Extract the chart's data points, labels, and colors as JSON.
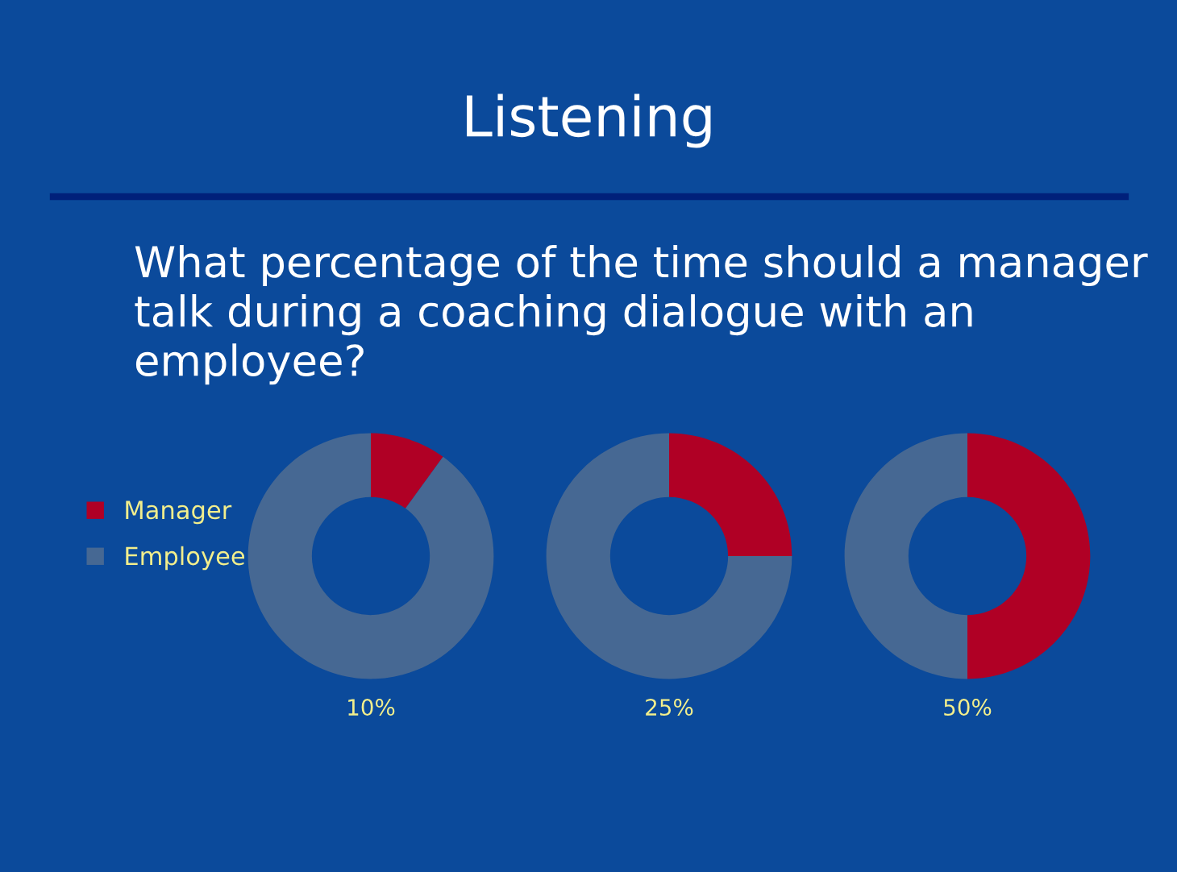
{
  "chart_data": {
    "type": "donut",
    "title": "Listening",
    "subtitle": "What percentage of the time should a manager talk during a coaching dialogue with an employee?",
    "categories": [
      "Manager",
      "Employee"
    ],
    "colors": [
      "#b00025",
      "#466893"
    ],
    "legend": "left",
    "annotations": [
      "10%",
      "25%",
      "50%"
    ],
    "series": [
      {
        "values": [
          10,
          90
        ]
      },
      {
        "values": [
          25,
          75
        ]
      },
      {
        "values": [
          50,
          50
        ]
      }
    ]
  }
}
